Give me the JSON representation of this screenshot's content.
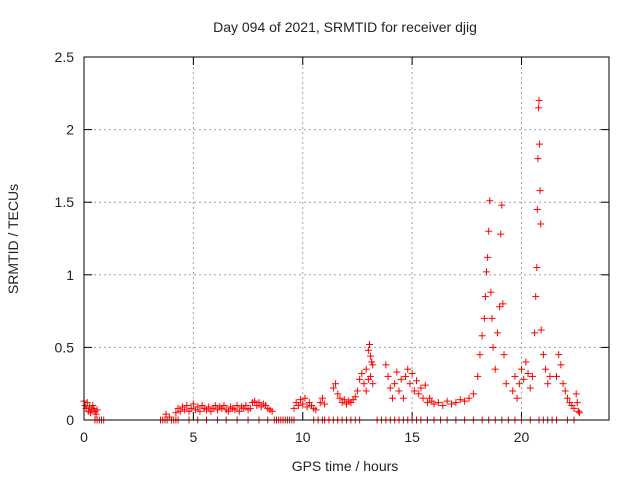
{
  "chart_data": {
    "type": "scatter",
    "title": "Day 094 of 2021, SRMTID for receiver djig",
    "xlabel": "GPS time / hours",
    "ylabel": "SRMTID / TECUs",
    "xlim": [
      0,
      24
    ],
    "ylim": [
      0,
      2.5
    ],
    "xticks": [
      0,
      5,
      10,
      15,
      20
    ],
    "xtick_labels": [
      "0",
      "5",
      "10",
      "15",
      "20"
    ],
    "yticks": [
      0,
      0.5,
      1,
      1.5,
      2,
      2.5
    ],
    "ytick_labels": [
      "0",
      "0.5",
      "1",
      "1.5",
      "2",
      "2.5"
    ],
    "grid": true,
    "marker": "+",
    "colors": {
      "marker": "#ff0000",
      "grid": "#a0a0a0",
      "axis": "#000000"
    },
    "series": [
      {
        "name": "SRMTID",
        "points": [
          [
            0.0,
            0.13
          ],
          [
            0.05,
            0.1
          ],
          [
            0.1,
            0.08
          ],
          [
            0.15,
            0.12
          ],
          [
            0.2,
            0.06
          ],
          [
            0.25,
            0.09
          ],
          [
            0.3,
            0.05
          ],
          [
            0.35,
            0.07
          ],
          [
            0.4,
            0.1
          ],
          [
            0.45,
            0.08
          ],
          [
            0.5,
            0.06
          ],
          [
            0.55,
            0.04
          ],
          [
            0.6,
            0.07
          ],
          [
            0.5,
            0.0
          ],
          [
            0.6,
            0.0
          ],
          [
            0.7,
            0.0
          ],
          [
            0.8,
            0.0
          ],
          [
            0.9,
            0.0
          ],
          [
            3.5,
            0.0
          ],
          [
            3.6,
            0.0
          ],
          [
            3.7,
            0.0
          ],
          [
            3.8,
            0.0
          ],
          [
            3.9,
            0.02
          ],
          [
            4.0,
            0.0
          ],
          [
            4.1,
            0.0
          ],
          [
            4.2,
            0.0
          ],
          [
            4.3,
            0.0
          ],
          [
            3.75,
            0.04
          ],
          [
            4.2,
            0.05
          ],
          [
            4.3,
            0.08
          ],
          [
            4.4,
            0.06
          ],
          [
            4.5,
            0.09
          ],
          [
            4.6,
            0.07
          ],
          [
            4.7,
            0.1
          ],
          [
            4.8,
            0.06
          ],
          [
            4.9,
            0.08
          ],
          [
            5.0,
            0.11
          ],
          [
            5.1,
            0.07
          ],
          [
            5.2,
            0.09
          ],
          [
            5.3,
            0.06
          ],
          [
            5.4,
            0.1
          ],
          [
            5.5,
            0.08
          ],
          [
            5.6,
            0.07
          ],
          [
            5.7,
            0.09
          ],
          [
            5.8,
            0.06
          ],
          [
            5.9,
            0.08
          ],
          [
            6.0,
            0.1
          ],
          [
            6.1,
            0.07
          ],
          [
            6.2,
            0.09
          ],
          [
            6.3,
            0.08
          ],
          [
            6.4,
            0.1
          ],
          [
            6.5,
            0.07
          ],
          [
            6.6,
            0.06
          ],
          [
            6.7,
            0.09
          ],
          [
            6.8,
            0.08
          ],
          [
            6.9,
            0.07
          ],
          [
            7.0,
            0.1
          ],
          [
            7.1,
            0.06
          ],
          [
            7.2,
            0.09
          ],
          [
            7.3,
            0.08
          ],
          [
            7.4,
            0.1
          ],
          [
            7.5,
            0.07
          ],
          [
            7.6,
            0.08
          ],
          [
            7.7,
            0.12
          ],
          [
            7.8,
            0.13
          ],
          [
            7.9,
            0.1
          ],
          [
            8.0,
            0.12
          ],
          [
            8.1,
            0.09
          ],
          [
            8.2,
            0.11
          ],
          [
            8.3,
            0.1
          ],
          [
            8.4,
            0.08
          ],
          [
            8.5,
            0.07
          ],
          [
            8.6,
            0.06
          ],
          [
            4.8,
            0.0
          ],
          [
            5.2,
            0.0
          ],
          [
            5.6,
            0.0
          ],
          [
            6.1,
            0.0
          ],
          [
            6.5,
            0.0
          ],
          [
            7.0,
            0.0
          ],
          [
            7.5,
            0.0
          ],
          [
            8.0,
            0.0
          ],
          [
            8.4,
            0.0
          ],
          [
            8.7,
            0.0
          ],
          [
            8.8,
            0.0
          ],
          [
            8.9,
            0.0
          ],
          [
            9.0,
            0.0
          ],
          [
            9.1,
            0.0
          ],
          [
            9.2,
            0.0
          ],
          [
            9.3,
            0.0
          ],
          [
            9.4,
            0.0
          ],
          [
            9.5,
            0.0
          ],
          [
            9.6,
            0.0
          ],
          [
            9.6,
            0.08
          ],
          [
            9.7,
            0.12
          ],
          [
            9.8,
            0.1
          ],
          [
            9.9,
            0.14
          ],
          [
            10.0,
            0.11
          ],
          [
            10.1,
            0.15
          ],
          [
            10.2,
            0.09
          ],
          [
            10.3,
            0.12
          ],
          [
            10.4,
            0.1
          ],
          [
            10.5,
            0.08
          ],
          [
            10.6,
            0.07
          ],
          [
            10.8,
            0.12
          ],
          [
            10.9,
            0.15
          ],
          [
            11.0,
            0.11
          ],
          [
            10.5,
            0.0
          ],
          [
            10.7,
            0.0
          ],
          [
            10.9,
            0.0
          ],
          [
            11.0,
            0.0
          ],
          [
            11.2,
            0.0
          ],
          [
            11.4,
            0.0
          ],
          [
            11.6,
            0.0
          ],
          [
            11.8,
            0.0
          ],
          [
            12.0,
            0.0
          ],
          [
            12.2,
            0.0
          ],
          [
            12.4,
            0.0
          ],
          [
            12.6,
            0.0
          ],
          [
            11.4,
            0.22
          ],
          [
            11.5,
            0.25
          ],
          [
            11.6,
            0.18
          ],
          [
            11.7,
            0.15
          ],
          [
            11.8,
            0.12
          ],
          [
            11.9,
            0.14
          ],
          [
            12.0,
            0.11
          ],
          [
            12.1,
            0.13
          ],
          [
            12.2,
            0.12
          ],
          [
            12.3,
            0.14
          ],
          [
            12.4,
            0.16
          ],
          [
            12.5,
            0.2
          ],
          [
            12.6,
            0.28
          ],
          [
            12.7,
            0.32
          ],
          [
            12.8,
            0.25
          ],
          [
            12.9,
            0.35
          ],
          [
            13.0,
            0.48
          ],
          [
            13.05,
            0.52
          ],
          [
            13.1,
            0.44
          ],
          [
            13.15,
            0.4
          ],
          [
            13.2,
            0.38
          ],
          [
            13.1,
            0.3
          ],
          [
            13.0,
            0.28
          ],
          [
            12.9,
            0.2
          ],
          [
            13.2,
            0.25
          ],
          [
            13.4,
            0.0
          ],
          [
            13.6,
            0.0
          ],
          [
            13.8,
            0.0
          ],
          [
            14.0,
            0.0
          ],
          [
            14.2,
            0.0
          ],
          [
            14.4,
            0.0
          ],
          [
            14.6,
            0.0
          ],
          [
            14.8,
            0.0
          ],
          [
            15.0,
            0.0
          ],
          [
            15.2,
            0.0
          ],
          [
            15.4,
            0.0
          ],
          [
            15.7,
            0.0
          ],
          [
            16.0,
            0.0
          ],
          [
            16.3,
            0.0
          ],
          [
            16.6,
            0.0
          ],
          [
            17.0,
            0.0
          ],
          [
            17.4,
            0.0
          ],
          [
            17.8,
            0.0
          ],
          [
            13.8,
            0.38
          ],
          [
            13.9,
            0.3
          ],
          [
            14.0,
            0.22
          ],
          [
            14.1,
            0.15
          ],
          [
            14.2,
            0.25
          ],
          [
            14.3,
            0.33
          ],
          [
            14.4,
            0.2
          ],
          [
            14.5,
            0.28
          ],
          [
            14.6,
            0.15
          ],
          [
            14.7,
            0.3
          ],
          [
            14.8,
            0.35
          ],
          [
            14.9,
            0.25
          ],
          [
            15.0,
            0.32
          ],
          [
            15.1,
            0.2
          ],
          [
            15.2,
            0.27
          ],
          [
            15.3,
            0.18
          ],
          [
            15.4,
            0.22
          ],
          [
            15.5,
            0.15
          ],
          [
            15.6,
            0.24
          ],
          [
            15.7,
            0.12
          ],
          [
            15.8,
            0.15
          ],
          [
            15.9,
            0.13
          ],
          [
            16.0,
            0.11
          ],
          [
            16.2,
            0.12
          ],
          [
            16.4,
            0.1
          ],
          [
            16.6,
            0.13
          ],
          [
            16.8,
            0.11
          ],
          [
            17.0,
            0.12
          ],
          [
            17.2,
            0.14
          ],
          [
            17.4,
            0.13
          ],
          [
            17.6,
            0.15
          ],
          [
            17.8,
            0.18
          ],
          [
            18.0,
            0.3
          ],
          [
            18.1,
            0.45
          ],
          [
            18.2,
            0.58
          ],
          [
            18.3,
            0.7
          ],
          [
            18.35,
            0.85
          ],
          [
            18.4,
            1.02
          ],
          [
            18.45,
            1.12
          ],
          [
            18.5,
            1.3
          ],
          [
            18.55,
            1.51
          ],
          [
            18.6,
            0.88
          ],
          [
            18.65,
            0.7
          ],
          [
            18.7,
            0.5
          ],
          [
            18.8,
            0.35
          ],
          [
            18.9,
            0.6
          ],
          [
            19.0,
            0.78
          ],
          [
            19.05,
            1.28
          ],
          [
            19.1,
            1.48
          ],
          [
            19.15,
            0.8
          ],
          [
            19.2,
            0.45
          ],
          [
            19.3,
            0.25
          ],
          [
            18.2,
            0.0
          ],
          [
            18.5,
            0.0
          ],
          [
            18.8,
            0.0
          ],
          [
            19.1,
            0.0
          ],
          [
            19.4,
            0.0
          ],
          [
            19.7,
            0.0
          ],
          [
            19.6,
            0.2
          ],
          [
            19.7,
            0.3
          ],
          [
            19.8,
            0.15
          ],
          [
            19.9,
            0.25
          ],
          [
            20.0,
            0.35
          ],
          [
            20.1,
            0.28
          ],
          [
            20.2,
            0.4
          ],
          [
            20.3,
            0.32
          ],
          [
            20.4,
            0.22
          ],
          [
            20.5,
            0.3
          ],
          [
            20.6,
            0.6
          ],
          [
            20.65,
            0.85
          ],
          [
            20.7,
            1.05
          ],
          [
            20.72,
            1.45
          ],
          [
            20.75,
            1.8
          ],
          [
            20.78,
            2.15
          ],
          [
            20.8,
            2.2
          ],
          [
            20.82,
            1.9
          ],
          [
            20.85,
            1.58
          ],
          [
            20.88,
            1.35
          ],
          [
            20.9,
            0.62
          ],
          [
            21.0,
            0.45
          ],
          [
            21.1,
            0.35
          ],
          [
            21.2,
            0.25
          ],
          [
            21.3,
            0.3
          ],
          [
            20.0,
            0.0
          ],
          [
            20.4,
            0.0
          ],
          [
            20.8,
            0.0
          ],
          [
            21.0,
            0.0
          ],
          [
            21.2,
            0.0
          ],
          [
            21.4,
            0.0
          ],
          [
            21.6,
            0.0
          ],
          [
            22.1,
            0.0
          ],
          [
            22.4,
            0.0
          ],
          [
            21.6,
            0.3
          ],
          [
            21.7,
            0.45
          ],
          [
            21.8,
            0.38
          ],
          [
            21.9,
            0.25
          ],
          [
            22.0,
            0.2
          ],
          [
            22.1,
            0.15
          ],
          [
            22.2,
            0.12
          ],
          [
            22.3,
            0.1
          ],
          [
            22.4,
            0.08
          ],
          [
            22.5,
            0.18
          ],
          [
            22.55,
            0.12
          ],
          [
            22.6,
            0.06
          ],
          [
            22.65,
            0.05
          ]
        ]
      }
    ]
  }
}
